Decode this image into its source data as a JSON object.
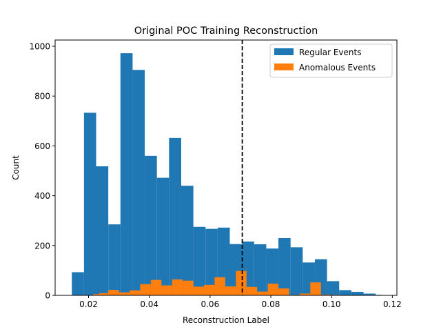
{
  "chart_data": {
    "type": "bar",
    "title": "Original POC Training Reconstruction",
    "xlabel": "Reconstruction Label",
    "ylabel": "Count",
    "xlim": [
      0.009,
      0.1215
    ],
    "ylim": [
      0,
      1025
    ],
    "xticks": [
      0.02,
      0.04,
      0.06,
      0.08,
      0.1,
      0.12
    ],
    "xtick_labels": [
      "0.02",
      "0.04",
      "0.06",
      "0.08",
      "0.10",
      "0.12"
    ],
    "yticks": [
      0,
      200,
      400,
      600,
      800,
      1000
    ],
    "ytick_labels": [
      "0",
      "200",
      "400",
      "600",
      "800",
      "1000"
    ],
    "legend_position": "top-right",
    "threshold_line": {
      "x": 0.0706,
      "style": "dashed",
      "color": "#000000"
    },
    "series": [
      {
        "name": "Regular Events",
        "color": "#1f77b4",
        "bins": [
          {
            "x0": 0.0145,
            "x1": 0.0185,
            "count": 93
          },
          {
            "x0": 0.0185,
            "x1": 0.0225,
            "count": 733
          },
          {
            "x0": 0.0225,
            "x1": 0.0265,
            "count": 518
          },
          {
            "x0": 0.0265,
            "x1": 0.0305,
            "count": 285
          },
          {
            "x0": 0.0305,
            "x1": 0.0345,
            "count": 972
          },
          {
            "x0": 0.0345,
            "x1": 0.0385,
            "count": 905
          },
          {
            "x0": 0.0385,
            "x1": 0.0425,
            "count": 560
          },
          {
            "x0": 0.0425,
            "x1": 0.0465,
            "count": 472
          },
          {
            "x0": 0.0465,
            "x1": 0.0505,
            "count": 632
          },
          {
            "x0": 0.0505,
            "x1": 0.0545,
            "count": 440
          },
          {
            "x0": 0.0545,
            "x1": 0.0585,
            "count": 275
          },
          {
            "x0": 0.0585,
            "x1": 0.0625,
            "count": 267
          },
          {
            "x0": 0.0625,
            "x1": 0.0665,
            "count": 272
          },
          {
            "x0": 0.0665,
            "x1": 0.0705,
            "count": 206
          },
          {
            "x0": 0.0705,
            "x1": 0.0745,
            "count": 216
          },
          {
            "x0": 0.0745,
            "x1": 0.0785,
            "count": 205
          },
          {
            "x0": 0.0785,
            "x1": 0.0825,
            "count": 188
          },
          {
            "x0": 0.0825,
            "x1": 0.0865,
            "count": 230
          },
          {
            "x0": 0.0865,
            "x1": 0.0905,
            "count": 193
          },
          {
            "x0": 0.0905,
            "x1": 0.0945,
            "count": 132
          },
          {
            "x0": 0.0945,
            "x1": 0.0985,
            "count": 145
          },
          {
            "x0": 0.0985,
            "x1": 0.1025,
            "count": 57
          },
          {
            "x0": 0.1025,
            "x1": 0.1065,
            "count": 21
          },
          {
            "x0": 0.1065,
            "x1": 0.1105,
            "count": 14
          },
          {
            "x0": 0.1105,
            "x1": 0.1145,
            "count": 7
          },
          {
            "x0": 0.1145,
            "x1": 0.1165,
            "count": 2
          }
        ]
      },
      {
        "name": "Anomalous Events",
        "color": "#ff7f0e",
        "bins": [
          {
            "x0": 0.0215,
            "x1": 0.0235,
            "count": 5
          },
          {
            "x0": 0.0235,
            "x1": 0.0265,
            "count": 9
          },
          {
            "x0": 0.0265,
            "x1": 0.03,
            "count": 22
          },
          {
            "x0": 0.03,
            "x1": 0.0335,
            "count": 12
          },
          {
            "x0": 0.0335,
            "x1": 0.037,
            "count": 20
          },
          {
            "x0": 0.037,
            "x1": 0.0405,
            "count": 45
          },
          {
            "x0": 0.0405,
            "x1": 0.044,
            "count": 62
          },
          {
            "x0": 0.044,
            "x1": 0.0475,
            "count": 40
          },
          {
            "x0": 0.0475,
            "x1": 0.051,
            "count": 64
          },
          {
            "x0": 0.051,
            "x1": 0.0545,
            "count": 59
          },
          {
            "x0": 0.0545,
            "x1": 0.058,
            "count": 35
          },
          {
            "x0": 0.058,
            "x1": 0.0615,
            "count": 42
          },
          {
            "x0": 0.0615,
            "x1": 0.065,
            "count": 73
          },
          {
            "x0": 0.065,
            "x1": 0.0685,
            "count": 36
          },
          {
            "x0": 0.0685,
            "x1": 0.072,
            "count": 98
          },
          {
            "x0": 0.072,
            "x1": 0.0755,
            "count": 34
          },
          {
            "x0": 0.0755,
            "x1": 0.079,
            "count": 15
          },
          {
            "x0": 0.079,
            "x1": 0.0825,
            "count": 47
          },
          {
            "x0": 0.0825,
            "x1": 0.086,
            "count": 28
          },
          {
            "x0": 0.086,
            "x1": 0.0895,
            "count": 2
          },
          {
            "x0": 0.0895,
            "x1": 0.093,
            "count": 7
          },
          {
            "x0": 0.093,
            "x1": 0.0965,
            "count": 52
          },
          {
            "x0": 0.0965,
            "x1": 0.1,
            "count": 3
          },
          {
            "x0": 0.1,
            "x1": 0.1035,
            "count": 2
          }
        ]
      }
    ]
  }
}
